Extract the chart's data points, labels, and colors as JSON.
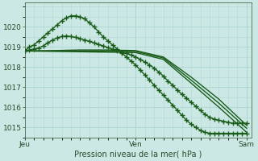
{
  "xlabel": "Pression niveau de la mer( hPa )",
  "bg_color": "#cce8e4",
  "grid_color": "#b0d8d4",
  "line_color": "#1a5c1a",
  "ylim": [
    1014.5,
    1021.2
  ],
  "xlim": [
    0,
    49
  ],
  "yticks": [
    1015,
    1016,
    1017,
    1018,
    1019,
    1020
  ],
  "xtick_positions": [
    0,
    24,
    48
  ],
  "xtick_labels": [
    "Jeu",
    "Ven",
    "Sam"
  ],
  "series": [
    {
      "x": [
        0,
        1,
        2,
        3,
        4,
        5,
        6,
        7,
        8,
        9,
        10,
        11,
        12,
        13,
        14,
        15,
        16,
        17,
        18,
        19,
        20,
        21,
        22,
        23,
        24,
        25,
        26,
        27,
        28,
        29,
        30,
        31,
        32,
        33,
        34,
        35,
        36,
        37,
        38,
        39,
        40,
        41,
        42,
        43,
        44,
        45,
        46,
        47,
        48
      ],
      "y": [
        1018.8,
        1019.0,
        1019.1,
        1019.3,
        1019.5,
        1019.7,
        1019.9,
        1020.1,
        1020.3,
        1020.45,
        1020.55,
        1020.55,
        1020.5,
        1020.4,
        1020.2,
        1020.0,
        1019.75,
        1019.5,
        1019.3,
        1019.1,
        1018.9,
        1018.7,
        1018.5,
        1018.3,
        1018.1,
        1017.85,
        1017.6,
        1017.35,
        1017.1,
        1016.85,
        1016.6,
        1016.35,
        1016.1,
        1015.85,
        1015.6,
        1015.35,
        1015.15,
        1015.0,
        1014.85,
        1014.75,
        1014.7,
        1014.7,
        1014.7,
        1014.7,
        1014.7,
        1014.7,
        1014.7,
        1014.7,
        1014.7
      ],
      "marker": "+",
      "markersize": 4,
      "linewidth": 1.0
    },
    {
      "x": [
        0,
        1,
        2,
        3,
        4,
        5,
        6,
        7,
        8,
        9,
        10,
        11,
        12,
        13,
        14,
        15,
        16,
        17,
        18,
        19,
        20,
        21,
        22,
        23,
        24,
        25,
        26,
        27,
        28,
        29,
        30,
        31,
        32,
        33,
        34,
        35,
        36,
        37,
        38,
        39,
        40,
        41,
        42,
        43,
        44,
        45,
        46,
        47,
        48
      ],
      "y": [
        1018.8,
        1018.85,
        1018.9,
        1018.95,
        1019.05,
        1019.2,
        1019.35,
        1019.45,
        1019.52,
        1019.55,
        1019.52,
        1019.48,
        1019.42,
        1019.35,
        1019.28,
        1019.2,
        1019.12,
        1019.05,
        1018.97,
        1018.9,
        1018.82,
        1018.75,
        1018.68,
        1018.6,
        1018.5,
        1018.38,
        1018.25,
        1018.1,
        1017.95,
        1017.75,
        1017.55,
        1017.3,
        1017.1,
        1016.85,
        1016.65,
        1016.45,
        1016.25,
        1016.05,
        1015.85,
        1015.65,
        1015.5,
        1015.4,
        1015.35,
        1015.3,
        1015.25,
        1015.2,
        1015.2,
        1015.2,
        1015.2
      ],
      "marker": "+",
      "markersize": 4,
      "linewidth": 1.0
    },
    {
      "x": [
        0,
        6,
        12,
        18,
        24,
        30,
        36,
        42,
        48
      ],
      "y": [
        1018.8,
        1018.82,
        1018.85,
        1018.85,
        1018.82,
        1018.5,
        1017.5,
        1016.4,
        1015.1
      ],
      "marker": "None",
      "markersize": 0,
      "linewidth": 1.0
    },
    {
      "x": [
        0,
        6,
        12,
        18,
        24,
        30,
        36,
        42,
        48
      ],
      "y": [
        1018.8,
        1018.8,
        1018.8,
        1018.8,
        1018.78,
        1018.45,
        1017.35,
        1016.2,
        1014.95
      ],
      "marker": "None",
      "markersize": 0,
      "linewidth": 1.0
    },
    {
      "x": [
        0,
        6,
        12,
        18,
        24,
        30,
        36,
        42,
        48
      ],
      "y": [
        1018.8,
        1018.78,
        1018.76,
        1018.74,
        1018.72,
        1018.38,
        1017.2,
        1016.0,
        1014.75
      ],
      "marker": "None",
      "markersize": 0,
      "linewidth": 1.0
    }
  ]
}
